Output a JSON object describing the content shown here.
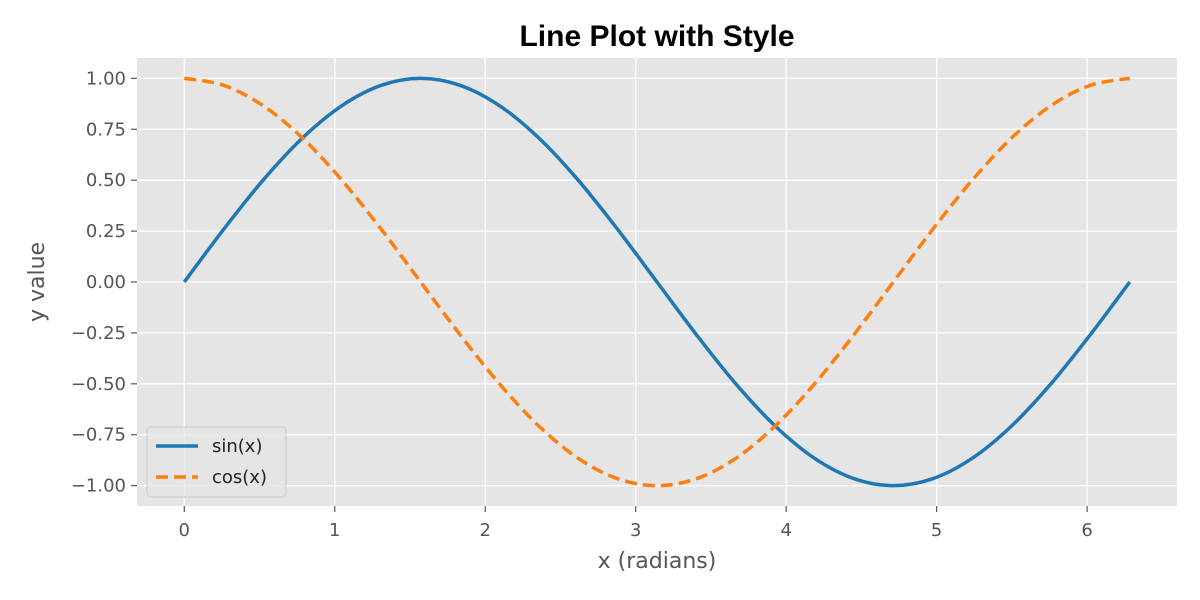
{
  "chart_data": {
    "type": "line",
    "title": "Line Plot with Style",
    "xlabel": "x (radians)",
    "ylabel": "y value",
    "xlim": [
      -0.31416,
      6.59734
    ],
    "ylim": [
      -1.1,
      1.1
    ],
    "x_ticks": [
      0,
      1,
      2,
      3,
      4,
      5,
      6
    ],
    "x_tick_labels": [
      "0",
      "1",
      "2",
      "3",
      "4",
      "5",
      "6"
    ],
    "y_ticks": [
      -1.0,
      -0.75,
      -0.5,
      -0.25,
      0.0,
      0.25,
      0.5,
      0.75,
      1.0
    ],
    "y_tick_labels": [
      "−1.00",
      "−0.75",
      "−0.50",
      "−0.25",
      "0.00",
      "0.25",
      "0.50",
      "0.75",
      "1.00"
    ],
    "grid": true,
    "legend_position": "lower-left",
    "background": "#e5e5e5",
    "series": [
      {
        "name": "sin(x)",
        "color": "#1f77b4",
        "style": "solid",
        "x": [
          0,
          0.2618,
          0.5236,
          0.7854,
          1.0472,
          1.309,
          1.5708,
          1.8326,
          2.0944,
          2.3562,
          2.618,
          2.8798,
          3.1416,
          3.4034,
          3.6652,
          3.927,
          4.1888,
          4.4506,
          4.7124,
          4.9742,
          5.236,
          5.4978,
          5.7596,
          6.0214,
          6.2832
        ],
        "values": [
          0,
          0.2588,
          0.5,
          0.7071,
          0.866,
          0.9659,
          1,
          0.9659,
          0.866,
          0.7071,
          0.5,
          0.2588,
          0,
          -0.2588,
          -0.5,
          -0.7071,
          -0.866,
          -0.9659,
          -1,
          -0.9659,
          -0.866,
          -0.7071,
          -0.5,
          -0.2588,
          0
        ]
      },
      {
        "name": "cos(x)",
        "color": "#ff7f0e",
        "style": "dashed",
        "x": [
          0,
          0.2618,
          0.5236,
          0.7854,
          1.0472,
          1.309,
          1.5708,
          1.8326,
          2.0944,
          2.3562,
          2.618,
          2.8798,
          3.1416,
          3.4034,
          3.6652,
          3.927,
          4.1888,
          4.4506,
          4.7124,
          4.9742,
          5.236,
          5.4978,
          5.7596,
          6.0214,
          6.2832
        ],
        "values": [
          1,
          0.9659,
          0.866,
          0.7071,
          0.5,
          0.2588,
          0,
          -0.2588,
          -0.5,
          -0.7071,
          -0.866,
          -0.9659,
          -1,
          -0.9659,
          -0.866,
          -0.7071,
          -0.5,
          -0.2588,
          0,
          0.2588,
          0.5,
          0.7071,
          0.866,
          0.9659,
          1
        ]
      }
    ]
  }
}
